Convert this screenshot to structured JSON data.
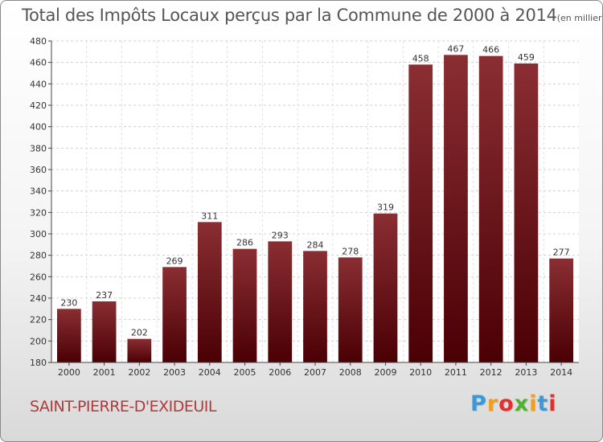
{
  "chart_data": {
    "type": "bar",
    "title": "Total des Impôts Locaux perçus par la Commune de 2000 à 2014",
    "subtitle": "(en milliers d'€)",
    "categories": [
      "2000",
      "2001",
      "2002",
      "2003",
      "2004",
      "2005",
      "2006",
      "2007",
      "2008",
      "2009",
      "2010",
      "2011",
      "2012",
      "2013",
      "2014"
    ],
    "values": [
      230,
      237,
      202,
      269,
      311,
      286,
      293,
      284,
      278,
      319,
      458,
      467,
      466,
      459,
      277
    ],
    "ylim": [
      180,
      480
    ],
    "yticks": [
      180,
      200,
      220,
      240,
      260,
      280,
      300,
      320,
      340,
      360,
      380,
      400,
      420,
      440,
      460,
      480
    ],
    "grid": true,
    "bar_color_top": "#8a2e33",
    "bar_color_bottom": "#4a0004"
  },
  "footer": {
    "commune": "SAINT-PIERRE-D'EXIDEUIL",
    "logo_letters": [
      "P",
      "r",
      "o",
      "x",
      "i",
      "t",
      "i"
    ],
    "logo_colors": [
      "#3a9ad9",
      "#f0a020",
      "#e03030",
      "#50b030",
      "#f0a020",
      "#3a9ad9",
      "#e03030"
    ]
  }
}
